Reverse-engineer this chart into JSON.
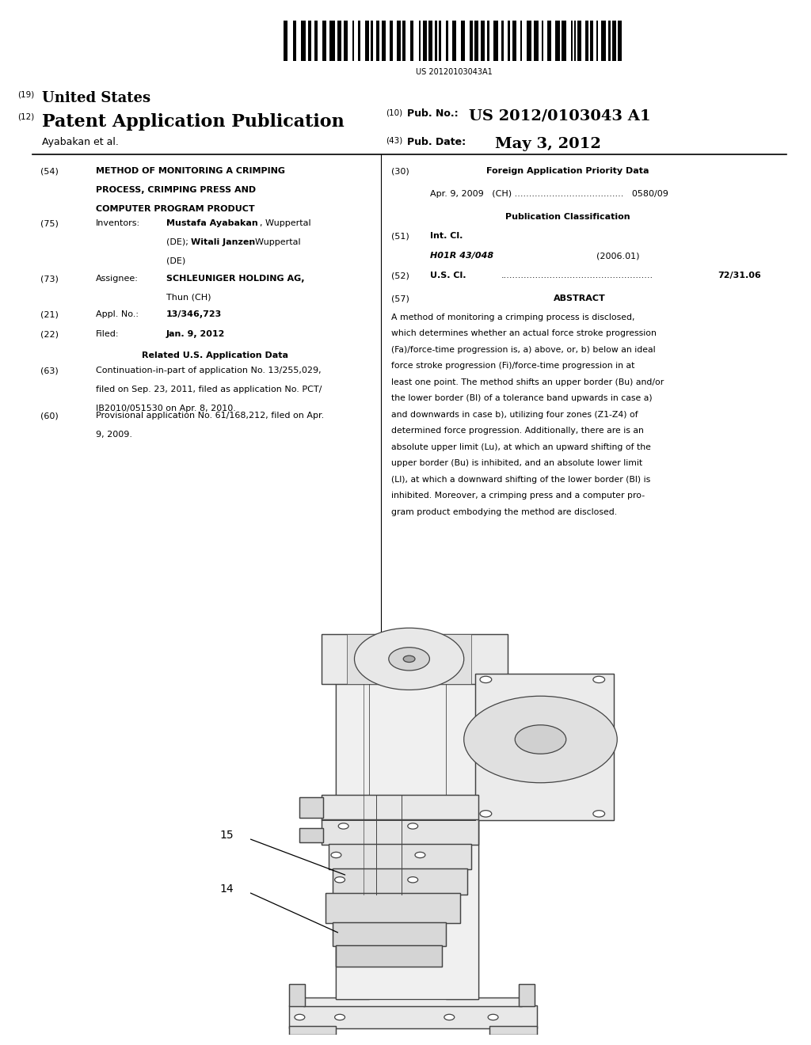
{
  "background_color": "#ffffff",
  "barcode_text": "US 20120103043A1",
  "header_line1_num": "(19)",
  "header_line1_text": "United States",
  "header_line2_num": "(12)",
  "header_line2_text": "Patent Application Publication",
  "header_right1_num": "(10)",
  "header_right1_label": "Pub. No.:",
  "header_right1_value": "US 2012/0103043 A1",
  "header_right2_num": "(43)",
  "header_right2_label": "Pub. Date:",
  "header_right2_value": "May 3, 2012",
  "header_inventor": "Ayabakan et al.",
  "field54_num": "(54)",
  "field54_line1": "METHOD OF MONITORING A CRIMPING",
  "field54_line2": "PROCESS, CRIMPING PRESS AND",
  "field54_line3": "COMPUTER PROGRAM PRODUCT",
  "field75_num": "(75)",
  "field75_label": "Inventors:",
  "field75_line1": "Mustafa Ayabakan, Wuppertal",
  "field75_line1b": "Mustafa Ayabakan",
  "field75_line2": "(DE); Witali Janzen, Wuppertal",
  "field75_line2b": "Witali Janzen",
  "field75_line3": "(DE)",
  "field73_num": "(73)",
  "field73_label": "Assignee:",
  "field73_line1": "SCHLEUNIGER HOLDING AG,",
  "field73_line2": "Thun (CH)",
  "field21_num": "(21)",
  "field21_label": "Appl. No.:",
  "field21_text": "13/346,723",
  "field22_num": "(22)",
  "field22_label": "Filed:",
  "field22_text": "Jan. 9, 2012",
  "related_header": "Related U.S. Application Data",
  "field63_num": "(63)",
  "field63_line1": "Continuation-in-part of application No. 13/255,029,",
  "field63_line2": "filed on Sep. 23, 2011, filed as application No. PCT/",
  "field63_line3": "IB2010/051530 on Apr. 8, 2010.",
  "field60_num": "(60)",
  "field60_line1": "Provisional application No. 61/168,212, filed on Apr.",
  "field60_line2": "9, 2009.",
  "field30_num": "(30)",
  "field30_header": "Foreign Application Priority Data",
  "field30_text": "Apr. 9, 2009   (CH) ......................................   0580/09",
  "pub_class_header": "Publication Classification",
  "field51_num": "(51)",
  "field51_label": "Int. Cl.",
  "field51_class": "H01R 43/048",
  "field51_year": "(2006.01)",
  "field52_num": "(52)",
  "field52_label": "U.S. Cl.",
  "field52_dots": ".....................................................",
  "field52_value": "72/31.06",
  "field57_num": "(57)",
  "field57_header": "ABSTRACT",
  "abstract_lines": [
    "A method of monitoring a crimping process is disclosed,",
    "which determines whether an actual force stroke progression",
    "(Fa)/force-time progression is, a) above, or, b) below an ideal",
    "force stroke progression (Fi)/force-time progression in at",
    "least one point. The method shifts an upper border (Bu) and/or",
    "the lower border (Bl) of a tolerance band upwards in case a)",
    "and downwards in case b), utilizing four zones (Z1-Z4) of",
    "determined force progression. Additionally, there are is an",
    "absolute upper limit (Lu), at which an upward shifting of the",
    "upper border (Bu) is inhibited, and an absolute lower limit",
    "(Ll), at which a downward shifting of the lower border (Bl) is",
    "inhibited. Moreover, a crimping press and a computer pro-",
    "gram product embodying the method are disclosed."
  ],
  "label14": "14",
  "label15": "15"
}
